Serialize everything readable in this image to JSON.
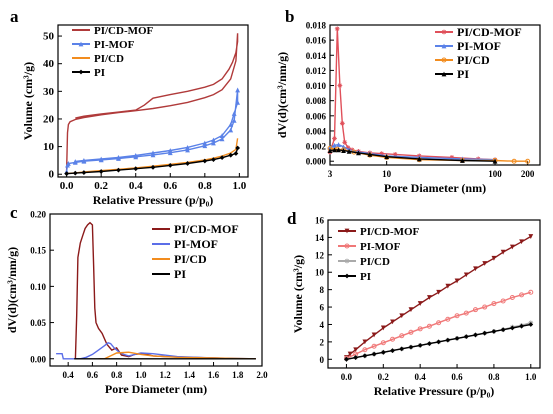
{
  "chart_data": [
    {
      "panel": "a",
      "type": "line",
      "xlabel": "Relative Pressure (p/p₀)",
      "ylabel": "Volume (cm³/g)",
      "xlim": [
        -0.05,
        1.05
      ],
      "ylim": [
        -1,
        54
      ],
      "xticks": [
        "0.0",
        "0.2",
        "0.4",
        "0.6",
        "0.8",
        "1.0"
      ],
      "yticks": [
        "0",
        "10",
        "20",
        "30",
        "40",
        "50"
      ],
      "legend_position": "top-left",
      "series": [
        {
          "name": "PI/CD-MOF",
          "color": "#b03a3a",
          "marker": "none",
          "x": [
            0.0,
            0.005,
            0.01,
            0.02,
            0.05,
            0.1,
            0.2,
            0.3,
            0.4,
            0.5,
            0.6,
            0.7,
            0.8,
            0.85,
            0.9,
            0.95,
            0.98,
            0.99,
            0.99,
            0.98,
            0.96,
            0.94,
            0.9,
            0.85,
            0.8,
            0.7,
            0.6,
            0.5,
            0.45,
            0.4,
            0.3,
            0.2,
            0.1,
            0.05
          ],
          "y": [
            1,
            15,
            18,
            19,
            19.8,
            20.5,
            21.5,
            22.3,
            23,
            23.8,
            24.8,
            26,
            27.7,
            28.8,
            30.6,
            34.5,
            41,
            51,
            48,
            44,
            40.5,
            38,
            34.5,
            32.5,
            31.5,
            30,
            28.8,
            27.5,
            25,
            23.2,
            22.5,
            21.8,
            21,
            20.3
          ]
        },
        {
          "name": "PI-MOF",
          "color": "#5b82e8",
          "marker": "triangle",
          "x": [
            0.0,
            0.005,
            0.01,
            0.05,
            0.1,
            0.2,
            0.3,
            0.4,
            0.5,
            0.6,
            0.7,
            0.8,
            0.85,
            0.9,
            0.95,
            0.97,
            0.99,
            0.99,
            0.97,
            0.95,
            0.9,
            0.85,
            0.8,
            0.7,
            0.6,
            0.5,
            0.4,
            0.3,
            0.2,
            0.1,
            0.05
          ],
          "y": [
            1,
            3.3,
            3.9,
            4.3,
            4.7,
            5.2,
            5.7,
            6.3,
            7,
            7.8,
            8.8,
            10.3,
            11.3,
            12.8,
            16,
            19.5,
            30.5,
            26,
            22,
            18,
            14,
            12.4,
            11.3,
            9.7,
            8.6,
            7.7,
            6.8,
            6.1,
            5.5,
            5,
            4.6
          ]
        },
        {
          "name": "PI/CD",
          "color": "#f28c1e",
          "marker": "none",
          "x": [
            0.0,
            0.05,
            0.1,
            0.2,
            0.3,
            0.4,
            0.5,
            0.6,
            0.7,
            0.8,
            0.85,
            0.9,
            0.95,
            0.98,
            0.99
          ],
          "y": [
            0.3,
            0.5,
            0.8,
            1.3,
            1.8,
            2.3,
            2.9,
            3.6,
            4.3,
            5.2,
            5.8,
            6.6,
            7.7,
            9,
            13
          ]
        },
        {
          "name": "PI",
          "color": "#000000",
          "marker": "diamond",
          "x": [
            0.0,
            0.05,
            0.1,
            0.2,
            0.3,
            0.4,
            0.5,
            0.6,
            0.7,
            0.8,
            0.85,
            0.9,
            0.95,
            0.98,
            0.99
          ],
          "y": [
            0.2,
            0.4,
            0.6,
            1,
            1.5,
            2,
            2.5,
            3.2,
            3.9,
            4.8,
            5.3,
            6,
            6.9,
            7.5,
            9.5
          ]
        }
      ]
    },
    {
      "panel": "b",
      "type": "line",
      "xscale": "log",
      "xlabel": "Pore Diameter (nm)",
      "ylabel": "dV(d)(cm³/nm/g)",
      "xlim": [
        3,
        260
      ],
      "ylim": [
        -0.0005,
        0.018
      ],
      "xticks": [
        "3",
        "10",
        "100",
        "200"
      ],
      "yticks": [
        "0.000",
        "0.002",
        "0.004",
        "0.006",
        "0.008",
        "0.010",
        "0.012",
        "0.014",
        "0.016",
        "0.018"
      ],
      "legend_position": "top-right",
      "series": [
        {
          "name": "PI/CD-MOF",
          "color": "#e0505a",
          "marker": "star",
          "x": [
            3.0,
            3.3,
            3.5,
            3.7,
            3.9,
            4.1,
            4.4,
            4.8,
            5.5,
            7,
            9,
            12,
            20,
            40,
            70,
            100
          ],
          "y": [
            0.0012,
            0.003,
            0.0175,
            0.01,
            0.005,
            0.0025,
            0.0018,
            0.0015,
            0.0013,
            0.0011,
            0.001,
            0.0009,
            0.0007,
            0.0005,
            0.0003,
            0.0002
          ]
        },
        {
          "name": "PI-MOF",
          "color": "#5b82e8",
          "marker": "triangle",
          "x": [
            3.0,
            3.3,
            3.6,
            4.0,
            4.5,
            5.5,
            7,
            10,
            20,
            50,
            100
          ],
          "y": [
            0.0018,
            0.0021,
            0.0022,
            0.0019,
            0.0015,
            0.0012,
            0.001,
            0.0007,
            0.0005,
            0.0003,
            0.0002
          ]
        },
        {
          "name": "PI/CD",
          "color": "#f28c1e",
          "marker": "circle",
          "x": [
            3.0,
            3.5,
            4,
            5,
            7,
            10,
            20,
            50,
            100,
            150,
            200
          ],
          "y": [
            0.0017,
            0.0016,
            0.0015,
            0.0012,
            0.0008,
            0.0005,
            0.0002,
            0.0001,
            0.0001,
            0.0,
            0.0
          ]
        },
        {
          "name": "PI",
          "color": "#000000",
          "marker": "triangle",
          "x": [
            3.0,
            3.3,
            3.6,
            4,
            4.5,
            5.5,
            7,
            10,
            20,
            50,
            100
          ],
          "y": [
            0.0014,
            0.0015,
            0.0015,
            0.0014,
            0.0013,
            0.0011,
            0.0009,
            0.0006,
            0.0003,
            0.0001,
            0.0
          ]
        }
      ]
    },
    {
      "panel": "c",
      "type": "line",
      "xlabel": "Pore Diameter (nm)",
      "ylabel": "dV(d)(cm³/nm/g)",
      "xlim": [
        0.25,
        2.0
      ],
      "ylim": [
        -0.01,
        0.2
      ],
      "xticks": [
        "0.4",
        "0.6",
        "0.8",
        "1.0",
        "1.2",
        "1.4",
        "1.6",
        "1.8",
        "2.0"
      ],
      "yticks": [
        "0.00",
        "0.05",
        "0.10",
        "0.15",
        "0.20"
      ],
      "legend_position": "top-right",
      "series": [
        {
          "name": "PI/CD-MOF",
          "color": "#8b1a1a",
          "marker": "none",
          "x": [
            0.46,
            0.47,
            0.48,
            0.5,
            0.52,
            0.54,
            0.56,
            0.58,
            0.6,
            0.61,
            0.62,
            0.63,
            0.65,
            0.68,
            0.72,
            0.76,
            0.8,
            0.84,
            0.9,
            0.95,
            1.0,
            1.05,
            1.1,
            1.2,
            1.4,
            1.6,
            1.8,
            1.95
          ],
          "y": [
            0.0,
            0.06,
            0.14,
            0.16,
            0.17,
            0.18,
            0.185,
            0.188,
            0.185,
            0.13,
            0.07,
            0.05,
            0.042,
            0.035,
            0.02,
            0.012,
            0.015,
            0.005,
            0.003,
            0.006,
            0.007,
            0.006,
            0.004,
            0.003,
            0.002,
            0.001,
            0.0,
            0.0
          ]
        },
        {
          "name": "PI-MOF",
          "color": "#5b6ee8",
          "marker": "none",
          "x": [
            0.3,
            0.33,
            0.35,
            0.36,
            0.4,
            0.45,
            0.5,
            0.55,
            0.6,
            0.65,
            0.7,
            0.73,
            0.75,
            0.78,
            0.82,
            0.86,
            0.9,
            1.0,
            1.1,
            1.3,
            1.6,
            1.95
          ],
          "y": [
            0.007,
            0.007,
            0.007,
            0.0,
            0.0,
            0.0,
            0.0,
            0.002,
            0.006,
            0.012,
            0.018,
            0.022,
            0.021,
            0.015,
            0.009,
            0.006,
            0.004,
            0.008,
            0.007,
            0.003,
            0.001,
            0.0
          ]
        },
        {
          "name": "PI/CD",
          "color": "#f28c1e",
          "marker": "none",
          "x": [
            0.65,
            0.7,
            0.75,
            0.8,
            0.9,
            1.0,
            1.1,
            1.3,
            1.6,
            1.95
          ],
          "y": [
            0.0,
            0.0,
            0.004,
            0.008,
            0.009,
            0.006,
            0.004,
            0.002,
            0.001,
            0.0
          ]
        },
        {
          "name": "PI",
          "color": "#000000",
          "marker": "none",
          "x": [
            0.45,
            0.6,
            0.8,
            1.0,
            1.2,
            1.5,
            1.8,
            1.95
          ],
          "y": [
            0.0,
            0.0,
            0.0,
            0.0,
            0.0,
            0.0,
            0.0,
            0.0
          ]
        }
      ]
    },
    {
      "panel": "d",
      "type": "line",
      "xlabel": "Relative Pressure (p/p₀)",
      "ylabel": "Volume (cm³/g)",
      "xlim": [
        -0.1,
        1.05
      ],
      "ylim": [
        -1,
        16
      ],
      "xticks": [
        "0.0",
        "0.2",
        "0.4",
        "0.6",
        "0.8",
        "1.0"
      ],
      "yticks": [
        "0",
        "2",
        "4",
        "6",
        "8",
        "10",
        "12",
        "14",
        "16"
      ],
      "legend_position": "top-left",
      "series": [
        {
          "name": "PI/CD-MOF",
          "color": "#8b1a1a",
          "marker": "triangle-down",
          "x": [
            0.0,
            0.02,
            0.05,
            0.1,
            0.15,
            0.2,
            0.25,
            0.3,
            0.35,
            0.4,
            0.45,
            0.5,
            0.55,
            0.6,
            0.65,
            0.7,
            0.75,
            0.8,
            0.85,
            0.9,
            0.95,
            1.0
          ],
          "y": [
            0.2,
            0.6,
            1.1,
            2.0,
            2.8,
            3.6,
            4.3,
            5.0,
            5.7,
            6.4,
            7.1,
            7.7,
            8.4,
            9.0,
            9.7,
            10.4,
            11.0,
            11.6,
            12.3,
            12.9,
            13.5,
            14.1
          ]
        },
        {
          "name": "PI-MOF",
          "color": "#f07878",
          "marker": "circle",
          "x": [
            0.0,
            0.05,
            0.1,
            0.15,
            0.2,
            0.25,
            0.3,
            0.35,
            0.4,
            0.45,
            0.5,
            0.55,
            0.6,
            0.65,
            0.7,
            0.75,
            0.8,
            0.85,
            0.9,
            0.95,
            1.0
          ],
          "y": [
            0.1,
            0.6,
            1.1,
            1.5,
            1.9,
            2.3,
            2.7,
            3.1,
            3.5,
            3.8,
            4.2,
            4.6,
            5.0,
            5.3,
            5.7,
            6.0,
            6.4,
            6.7,
            7.1,
            7.4,
            7.7
          ]
        },
        {
          "name": "PI/CD",
          "color": "#aaaaaa",
          "marker": "star",
          "x": [
            0.0,
            0.05,
            0.1,
            0.15,
            0.2,
            0.25,
            0.3,
            0.35,
            0.4,
            0.45,
            0.5,
            0.55,
            0.6,
            0.65,
            0.7,
            0.75,
            0.8,
            0.85,
            0.9,
            0.95,
            1.0
          ],
          "y": [
            0.0,
            0.2,
            0.4,
            0.6,
            0.8,
            1.0,
            1.2,
            1.4,
            1.6,
            1.8,
            2.0,
            2.2,
            2.4,
            2.6,
            2.8,
            3.0,
            3.2,
            3.4,
            3.7,
            3.9,
            4.2
          ]
        },
        {
          "name": "PI",
          "color": "#000000",
          "marker": "diamond",
          "x": [
            0.0,
            0.05,
            0.1,
            0.15,
            0.2,
            0.25,
            0.3,
            0.35,
            0.4,
            0.45,
            0.5,
            0.55,
            0.6,
            0.65,
            0.7,
            0.75,
            0.8,
            0.85,
            0.9,
            0.95,
            1.0
          ],
          "y": [
            0.0,
            0.2,
            0.4,
            0.6,
            0.8,
            1.0,
            1.2,
            1.4,
            1.6,
            1.8,
            2.0,
            2.2,
            2.4,
            2.6,
            2.8,
            3.0,
            3.2,
            3.4,
            3.6,
            3.8,
            4.0
          ]
        }
      ]
    }
  ]
}
